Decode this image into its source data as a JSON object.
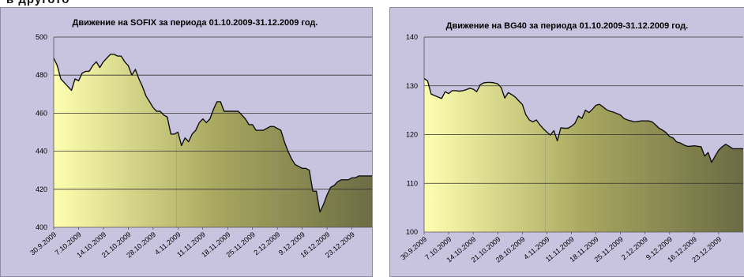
{
  "page_fragment": "в другото",
  "chart_data": [
    {
      "type": "area",
      "title": "Движение на SOFIX за периода 01.10.2009-31.12.2009 год.",
      "ylim": [
        400,
        500
      ],
      "yticks": [
        400,
        420,
        440,
        460,
        480,
        500
      ],
      "grid": "horizontal",
      "legend": "none",
      "x_range": [
        0,
        91
      ],
      "xticks": [
        {
          "label": "30.9.2009",
          "x": 0
        },
        {
          "label": "7.10.2009",
          "x": 7
        },
        {
          "label": "14.10.2009",
          "x": 14
        },
        {
          "label": "21.10.2009",
          "x": 21
        },
        {
          "label": "28.10.2009",
          "x": 28
        },
        {
          "label": "4.11.2009",
          "x": 35
        },
        {
          "label": "11.11.2009",
          "x": 42
        },
        {
          "label": "18.11.2009",
          "x": 49
        },
        {
          "label": "25.11.2009",
          "x": 56
        },
        {
          "label": "2.12.2009",
          "x": 63
        },
        {
          "label": "9.12.2009",
          "x": 70
        },
        {
          "label": "16.12.2009",
          "x": 77
        },
        {
          "label": "23.12.2009",
          "x": 84
        }
      ],
      "x": [
        0,
        1,
        2,
        3,
        4,
        5,
        6,
        7,
        8,
        9,
        10,
        11,
        12,
        13,
        14,
        15,
        16,
        17,
        18,
        19,
        20,
        21,
        22,
        23,
        24,
        25,
        26,
        27,
        28,
        29,
        30,
        31,
        32,
        33,
        34,
        35,
        36,
        37,
        38,
        39,
        40,
        41,
        42,
        43,
        44,
        45,
        46,
        47,
        48,
        49,
        50,
        51,
        52,
        53,
        54,
        55,
        56,
        57,
        58,
        59,
        60,
        61,
        62,
        63,
        64,
        65,
        66,
        67,
        68,
        69,
        70,
        71,
        72,
        73,
        74,
        75,
        76,
        77,
        78,
        79,
        80,
        81,
        82,
        83,
        84,
        85,
        86,
        87,
        88,
        89,
        90,
        91
      ],
      "values": [
        489,
        485,
        478,
        476,
        474,
        472,
        478,
        477,
        481,
        482,
        482,
        485,
        487,
        484,
        487,
        489,
        491,
        491,
        490,
        490,
        487,
        485,
        480,
        483,
        478,
        474,
        469,
        466,
        463,
        461,
        461,
        459,
        458,
        449,
        449,
        450,
        443,
        447,
        445,
        449,
        451,
        455,
        457,
        455,
        457,
        462,
        466,
        466,
        461,
        461,
        461,
        461,
        461,
        459,
        457,
        454,
        454,
        451,
        451,
        451,
        452,
        453,
        453,
        452,
        451,
        445,
        440,
        436,
        433,
        432,
        431,
        431,
        430,
        419,
        419,
        408,
        412,
        417,
        421,
        422,
        424,
        425,
        425,
        425,
        426,
        426,
        427,
        427,
        427,
        427,
        427,
        427
      ],
      "gradient_colors": [
        "#ffffb0",
        "#a8a860",
        "#6b6b44"
      ],
      "line_color": "#111111",
      "background_color": "#c8c4e0"
    },
    {
      "type": "area",
      "title": "Движение на BG40 за периода 01.10.2009-31.12.2009 год.",
      "ylim": [
        100,
        140
      ],
      "yticks": [
        100,
        110,
        120,
        130,
        140
      ],
      "grid": "horizontal",
      "legend": "none",
      "x_range": [
        0,
        91
      ],
      "xticks": [
        {
          "label": "30.9.2009",
          "x": 0
        },
        {
          "label": "7.10.2009",
          "x": 7
        },
        {
          "label": "14.10.2009",
          "x": 14
        },
        {
          "label": "21.10.2009",
          "x": 21
        },
        {
          "label": "28.10.2009",
          "x": 28
        },
        {
          "label": "4.11.2009",
          "x": 35
        },
        {
          "label": "11.11.2009",
          "x": 42
        },
        {
          "label": "18.11.2009",
          "x": 49
        },
        {
          "label": "25.11.2009",
          "x": 56
        },
        {
          "label": "2.12.2009",
          "x": 63
        },
        {
          "label": "9.12.2009",
          "x": 70
        },
        {
          "label": "16.12.2009",
          "x": 77
        },
        {
          "label": "23.12.2009",
          "x": 84
        }
      ],
      "x": [
        0,
        1,
        2,
        3,
        4,
        5,
        6,
        7,
        8,
        9,
        10,
        11,
        12,
        13,
        14,
        15,
        16,
        17,
        18,
        19,
        20,
        21,
        22,
        23,
        24,
        25,
        26,
        27,
        28,
        29,
        30,
        31,
        32,
        33,
        34,
        35,
        36,
        37,
        38,
        39,
        40,
        41,
        42,
        43,
        44,
        45,
        46,
        47,
        48,
        49,
        50,
        51,
        52,
        53,
        54,
        55,
        56,
        57,
        58,
        59,
        60,
        61,
        62,
        63,
        64,
        65,
        66,
        67,
        68,
        69,
        70,
        71,
        72,
        73,
        74,
        75,
        76,
        77,
        78,
        79,
        80,
        81,
        82,
        83,
        84,
        85,
        86,
        87,
        88,
        89,
        90,
        91
      ],
      "values": [
        131.5,
        131,
        128.3,
        128,
        127.7,
        127.4,
        128.8,
        128.4,
        129,
        129,
        128.9,
        129,
        129.2,
        129.5,
        129.3,
        128.8,
        130.2,
        130.6,
        130.7,
        130.7,
        130.6,
        130.4,
        129.6,
        127.5,
        128.6,
        128.2,
        127.7,
        126.9,
        126.2,
        124.1,
        123,
        122.6,
        123,
        122,
        121.2,
        120.5,
        119.9,
        120.8,
        118.7,
        121.4,
        121.3,
        121.3,
        121.7,
        122.3,
        123.8,
        123.3,
        125,
        124.5,
        125.2,
        126,
        126.2,
        125.7,
        125.1,
        124.8,
        124.6,
        124.3,
        124,
        123.3,
        123,
        122.8,
        122.6,
        122.7,
        122.8,
        122.8,
        122.8,
        122.6,
        122,
        121.3,
        120.9,
        120.4,
        119.6,
        119.3,
        118.5,
        118.3,
        117.9,
        117.6,
        117.6,
        117.7,
        117.6,
        117.5,
        115.6,
        116.3,
        114.3,
        115.6,
        116.8,
        117.5,
        118,
        117.6,
        117.1,
        117.1,
        117.1,
        117.1
      ],
      "gradient_colors": [
        "#ffffb0",
        "#a8a860",
        "#6b6b44"
      ],
      "line_color": "#111111",
      "background_color": "#c8c4e0"
    }
  ]
}
